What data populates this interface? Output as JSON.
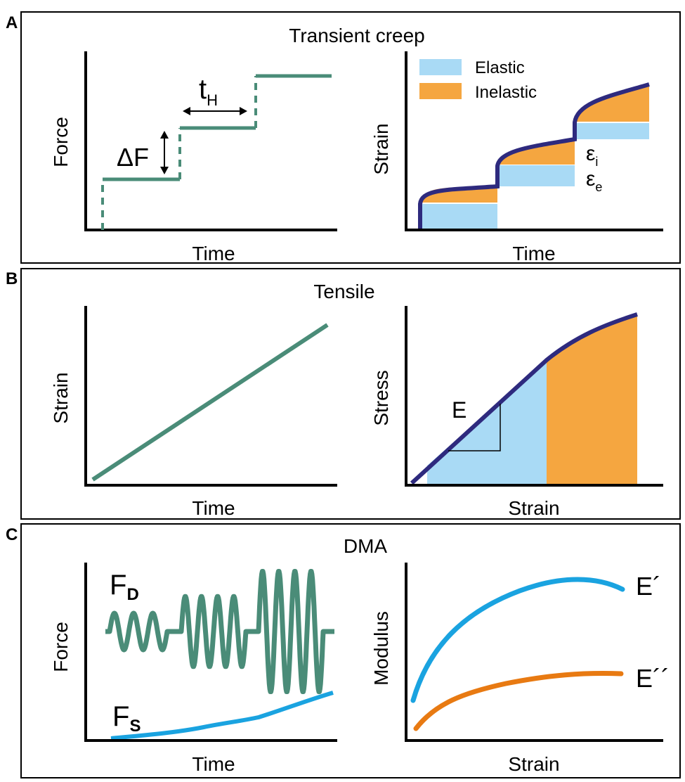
{
  "panels": {
    "A": {
      "letter": "A",
      "title": "Transient creep",
      "left": {
        "ylabel": "Force",
        "xlabel": "Time",
        "delta_f": "ΔF",
        "t_h_main": "t",
        "t_h_sub": "H"
      },
      "right": {
        "ylabel": "Strain",
        "xlabel": "Time",
        "legend": [
          {
            "label": "Elastic",
            "color": "#a9daf5"
          },
          {
            "label": "Inelastic",
            "color": "#f5a640"
          }
        ],
        "eps_i_main": "ε",
        "eps_i_sub": "i",
        "eps_e_main": "ε",
        "eps_e_sub": "e"
      }
    },
    "B": {
      "letter": "B",
      "title": "Tensile",
      "left": {
        "ylabel": "Strain",
        "xlabel": "Time"
      },
      "right": {
        "ylabel": "Stress",
        "xlabel": "Strain",
        "slope_label": "E"
      }
    },
    "C": {
      "letter": "C",
      "title": "DMA",
      "left": {
        "ylabel": "Force",
        "xlabel": "Time",
        "fd_main": "F",
        "fd_sub": "D",
        "fs_main": "F",
        "fs_sub": "S"
      },
      "right": {
        "ylabel": "Modulus",
        "xlabel": "Strain",
        "e_storage": "E´",
        "e_loss": "E´´"
      }
    }
  },
  "colors": {
    "teal": "#4a8c78",
    "navy": "#2e2a7e",
    "light_blue": "#a9daf5",
    "orange": "#f5a640",
    "cyan": "#1aa3e0",
    "dark_orange": "#e87a12"
  }
}
